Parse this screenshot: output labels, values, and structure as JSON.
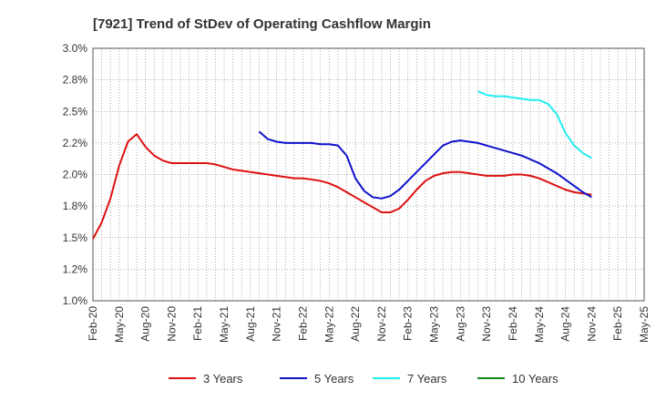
{
  "chart_data": {
    "type": "line",
    "title": "[7921]  Trend of StDev of Operating Cashflow Margin",
    "xlabel": "",
    "ylabel": "",
    "grid": true,
    "legend_position": "bottom",
    "ylim": [
      1.0,
      3.0
    ],
    "y_ticks": [
      "1.0%",
      "1.2%",
      "1.5%",
      "1.8%",
      "2.0%",
      "2.2%",
      "2.5%",
      "2.8%",
      "3.0%"
    ],
    "x_ticks": [
      "Feb-20",
      "May-20",
      "Aug-20",
      "Nov-20",
      "Feb-21",
      "May-21",
      "Aug-21",
      "Nov-21",
      "Feb-22",
      "May-22",
      "Aug-22",
      "Nov-22",
      "Feb-23",
      "May-23",
      "Aug-23",
      "Nov-23",
      "Feb-24",
      "May-24",
      "Aug-24",
      "Nov-24",
      "Feb-25",
      "May-25"
    ],
    "series": [
      {
        "name": "3 Years",
        "color": "#dd1111",
        "points": [
          [
            "Feb-20",
            1.49
          ],
          [
            "Mar-20",
            1.62
          ],
          [
            "Apr-20",
            1.81
          ],
          [
            "May-20",
            2.07
          ],
          [
            "Jun-20",
            2.26
          ],
          [
            "Jul-20",
            2.32
          ],
          [
            "Aug-20",
            2.22
          ],
          [
            "Sep-20",
            2.15
          ],
          [
            "Oct-20",
            2.11
          ],
          [
            "Nov-20",
            2.09
          ],
          [
            "Dec-20",
            2.09
          ],
          [
            "Jan-21",
            2.09
          ],
          [
            "Feb-21",
            2.09
          ],
          [
            "Mar-21",
            2.09
          ],
          [
            "Apr-21",
            2.08
          ],
          [
            "May-21",
            2.06
          ],
          [
            "Jun-21",
            2.04
          ],
          [
            "Jul-21",
            2.03
          ],
          [
            "Aug-21",
            2.02
          ],
          [
            "Sep-21",
            2.01
          ],
          [
            "Oct-21",
            2.0
          ],
          [
            "Nov-21",
            1.99
          ],
          [
            "Dec-21",
            1.98
          ],
          [
            "Jan-22",
            1.97
          ],
          [
            "Feb-22",
            1.97
          ],
          [
            "Mar-22",
            1.96
          ],
          [
            "Apr-22",
            1.95
          ],
          [
            "May-22",
            1.93
          ],
          [
            "Jun-22",
            1.9
          ],
          [
            "Jul-22",
            1.86
          ],
          [
            "Aug-22",
            1.82
          ],
          [
            "Sep-22",
            1.78
          ],
          [
            "Oct-22",
            1.74
          ],
          [
            "Nov-22",
            1.7
          ],
          [
            "Dec-22",
            1.7
          ],
          [
            "Jan-23",
            1.73
          ],
          [
            "Feb-23",
            1.8
          ],
          [
            "Mar-23",
            1.88
          ],
          [
            "Apr-23",
            1.95
          ],
          [
            "May-23",
            1.99
          ],
          [
            "Jun-23",
            2.01
          ],
          [
            "Jul-23",
            2.02
          ],
          [
            "Aug-23",
            2.02
          ],
          [
            "Sep-23",
            2.01
          ],
          [
            "Oct-23",
            2.0
          ],
          [
            "Nov-23",
            1.99
          ],
          [
            "Dec-23",
            1.99
          ],
          [
            "Jan-24",
            1.99
          ],
          [
            "Feb-24",
            2.0
          ],
          [
            "Mar-24",
            2.0
          ],
          [
            "Apr-24",
            1.99
          ],
          [
            "May-24",
            1.97
          ],
          [
            "Jun-24",
            1.94
          ],
          [
            "Jul-24",
            1.91
          ],
          [
            "Aug-24",
            1.88
          ],
          [
            "Sep-24",
            1.86
          ],
          [
            "Oct-24",
            1.85
          ],
          [
            "Nov-24",
            1.84
          ]
        ]
      },
      {
        "name": "5 Years",
        "color": "#1111cc",
        "points": [
          [
            "Sep-21",
            2.34
          ],
          [
            "Oct-21",
            2.28
          ],
          [
            "Nov-21",
            2.26
          ],
          [
            "Dec-21",
            2.25
          ],
          [
            "Jan-22",
            2.25
          ],
          [
            "Feb-22",
            2.25
          ],
          [
            "Mar-22",
            2.25
          ],
          [
            "Apr-22",
            2.24
          ],
          [
            "May-22",
            2.24
          ],
          [
            "Jun-22",
            2.23
          ],
          [
            "Jul-22",
            2.15
          ],
          [
            "Aug-22",
            1.97
          ],
          [
            "Sep-22",
            1.87
          ],
          [
            "Oct-22",
            1.82
          ],
          [
            "Nov-22",
            1.81
          ],
          [
            "Dec-22",
            1.83
          ],
          [
            "Jan-23",
            1.88
          ],
          [
            "Feb-23",
            1.95
          ],
          [
            "Mar-23",
            2.02
          ],
          [
            "Apr-23",
            2.09
          ],
          [
            "May-23",
            2.16
          ],
          [
            "Jun-23",
            2.23
          ],
          [
            "Jul-23",
            2.26
          ],
          [
            "Aug-23",
            2.27
          ],
          [
            "Sep-23",
            2.26
          ],
          [
            "Oct-23",
            2.25
          ],
          [
            "Nov-23",
            2.23
          ],
          [
            "Dec-23",
            2.21
          ],
          [
            "Jan-24",
            2.19
          ],
          [
            "Feb-24",
            2.17
          ],
          [
            "Mar-24",
            2.15
          ],
          [
            "Apr-24",
            2.12
          ],
          [
            "May-24",
            2.09
          ],
          [
            "Jun-24",
            2.05
          ],
          [
            "Jul-24",
            2.01
          ],
          [
            "Aug-24",
            1.96
          ],
          [
            "Sep-24",
            1.91
          ],
          [
            "Oct-24",
            1.86
          ],
          [
            "Nov-24",
            1.82
          ]
        ]
      },
      {
        "name": "7 Years",
        "color": "#22eeee",
        "points": [
          [
            "Oct-23",
            2.66
          ],
          [
            "Nov-23",
            2.63
          ],
          [
            "Dec-23",
            2.62
          ],
          [
            "Jan-24",
            2.62
          ],
          [
            "Feb-24",
            2.61
          ],
          [
            "Mar-24",
            2.6
          ],
          [
            "Apr-24",
            2.59
          ],
          [
            "May-24",
            2.59
          ],
          [
            "Jun-24",
            2.56
          ],
          [
            "Jul-24",
            2.48
          ],
          [
            "Aug-24",
            2.33
          ],
          [
            "Sep-24",
            2.23
          ],
          [
            "Oct-24",
            2.17
          ],
          [
            "Nov-24",
            2.13
          ]
        ]
      },
      {
        "name": "10 Years",
        "color": "#118811",
        "points": []
      }
    ]
  }
}
